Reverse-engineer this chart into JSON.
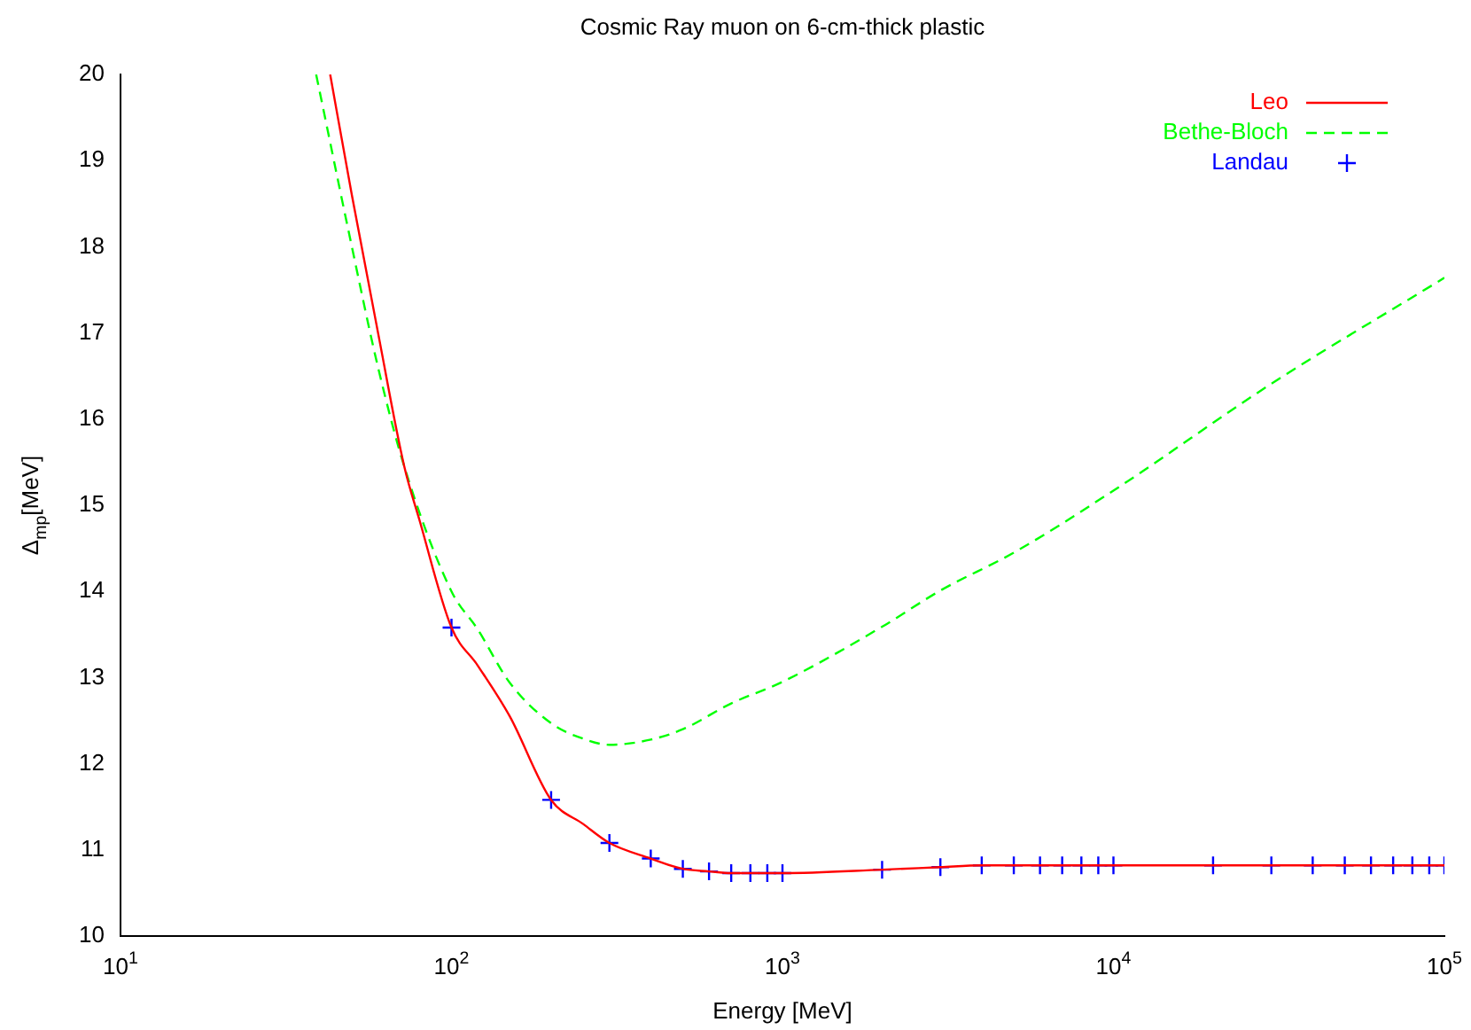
{
  "chart_data": {
    "type": "line",
    "title": "Cosmic Ray muon on 6-cm-thick plastic",
    "xlabel": "Energy [MeV]",
    "ylabel": "Δ$_{mp}$[MeV]",
    "log": "x",
    "xlim": [
      10,
      100000
    ],
    "xticks": [
      {
        "value": 10,
        "label": "10$^{1}$"
      },
      {
        "value": 100,
        "label": "10$^{2}$"
      },
      {
        "value": 1000,
        "label": "10$^{3}$"
      },
      {
        "value": 10000,
        "label": "10$^{4}$"
      },
      {
        "value": 100000,
        "label": "10$^{5}$"
      }
    ],
    "ylim": [
      10,
      20
    ],
    "yticks": [
      10,
      11,
      12,
      13,
      14,
      15,
      16,
      17,
      18,
      19,
      20
    ],
    "grid": false,
    "legend": "top right",
    "series": [
      {
        "name": "Leo",
        "color": "#ff0000",
        "line_style": "solid",
        "marker": "none",
        "x": [
          43,
          50,
          60,
          72,
          80,
          100,
          120,
          150,
          200,
          250,
          300,
          400,
          500,
          600,
          700,
          1000,
          2000,
          3000,
          4000,
          10000,
          100000
        ],
        "values": [
          20,
          18.6,
          17.0,
          15.45,
          14.83,
          13.58,
          13.14,
          12.55,
          11.58,
          11.3,
          11.08,
          10.9,
          10.78,
          10.75,
          10.73,
          10.73,
          10.77,
          10.8,
          10.82,
          10.82,
          10.82
        ]
      },
      {
        "name": "Bethe-Bloch",
        "color": "#00ff00",
        "line_style": "dashed",
        "marker": "none",
        "x": [
          39,
          50,
          60,
          72,
          100,
          120,
          150,
          200,
          250,
          300,
          400,
          500,
          700,
          1000,
          2000,
          3000,
          5000,
          10000,
          30000,
          100000
        ],
        "values": [
          20,
          18.0,
          16.6,
          15.45,
          14.0,
          13.56,
          12.94,
          12.47,
          12.29,
          12.22,
          12.28,
          12.4,
          12.7,
          12.95,
          13.59,
          14.01,
          14.45,
          15.17,
          16.41,
          17.64
        ]
      },
      {
        "name": "Landau",
        "type": "scatter",
        "color": "#0000ff",
        "marker": "cross",
        "x": [
          100,
          200,
          300,
          400,
          500,
          600,
          700,
          800,
          900,
          1000,
          2000,
          3000,
          4000,
          5000,
          6000,
          7000,
          8000,
          9000,
          10000,
          20000,
          30000,
          40000,
          50000,
          60000,
          70000,
          80000,
          90000,
          100000
        ],
        "values": [
          13.58,
          11.58,
          11.08,
          10.9,
          10.78,
          10.75,
          10.73,
          10.73,
          10.73,
          10.73,
          10.77,
          10.8,
          10.82,
          10.82,
          10.82,
          10.82,
          10.82,
          10.82,
          10.82,
          10.82,
          10.82,
          10.82,
          10.82,
          10.82,
          10.82,
          10.82,
          10.82,
          10.82
        ]
      }
    ]
  }
}
